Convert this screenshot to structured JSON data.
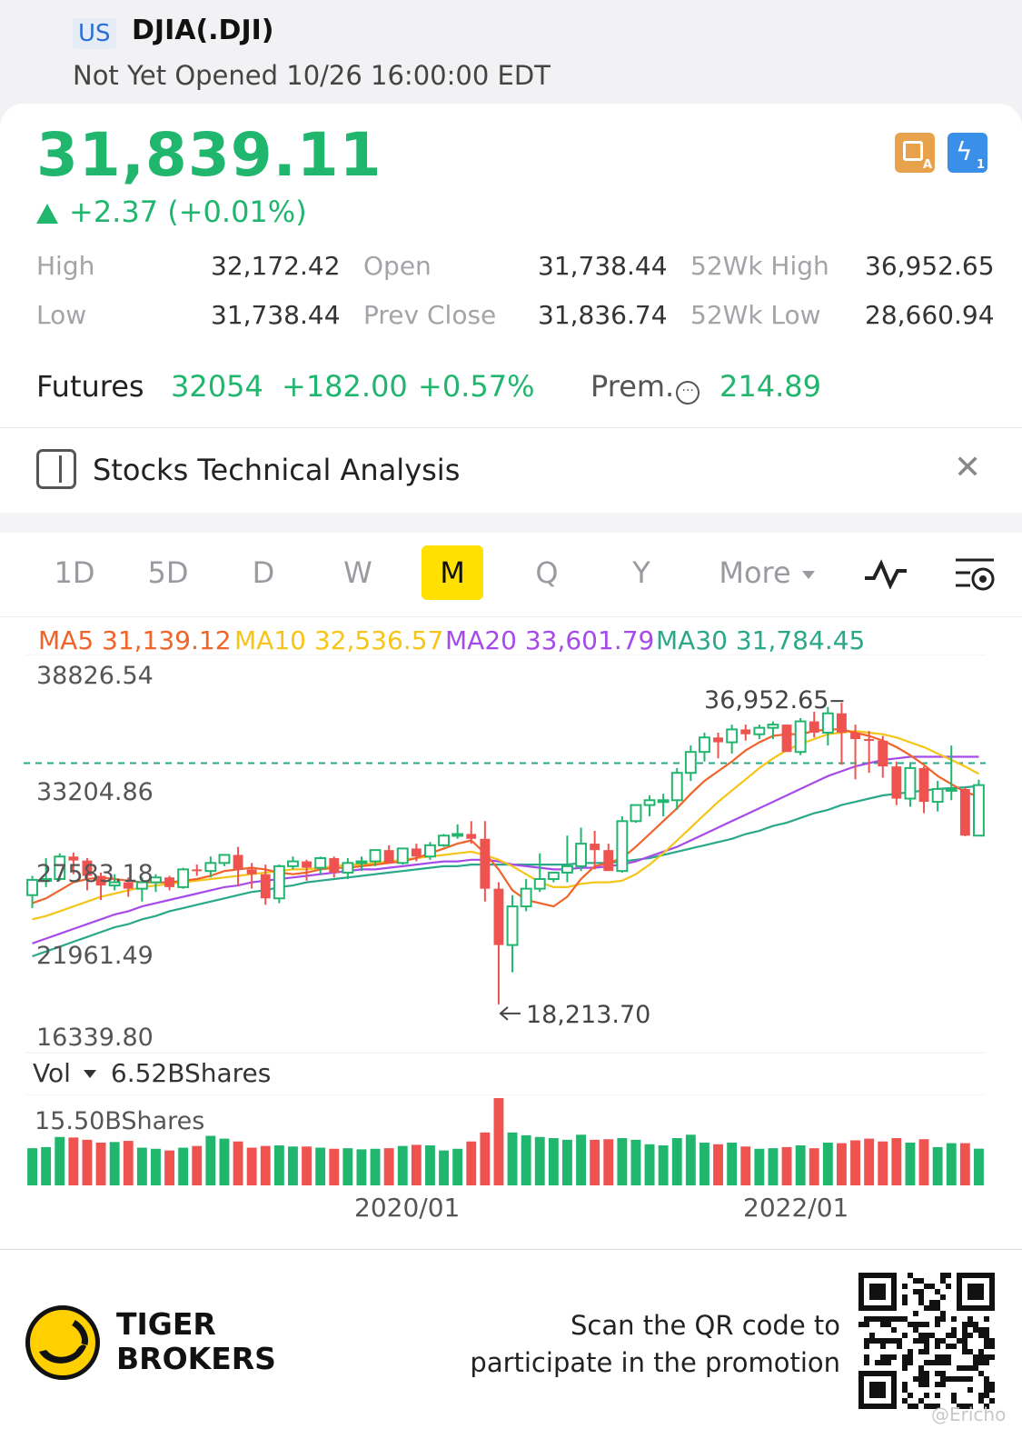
{
  "header": {
    "market_badge": "US",
    "ticker": "DJIA(.DJI)",
    "status": "Not Yet Opened 10/26 16:00:00 EDT"
  },
  "quote": {
    "price": "31,839.11",
    "change": "+2.37 (+0.01%)",
    "up_color": "#21b66e",
    "down_color": "#ef5350"
  },
  "badges": {
    "left_icon": "layers-icon",
    "left_tag": "A",
    "right_icon": "lightning-icon",
    "right_tag": "1"
  },
  "stats": [
    {
      "label": "High",
      "value": "32,172.42"
    },
    {
      "label": "Open",
      "value": "31,738.44"
    },
    {
      "label": "52Wk High",
      "value": "36,952.65"
    },
    {
      "label": "Low",
      "value": "31,738.44"
    },
    {
      "label": "Prev Close",
      "value": "31,836.74"
    },
    {
      "label": "52Wk Low",
      "value": "28,660.94"
    }
  ],
  "futures": {
    "label": "Futures",
    "price": "32054",
    "change": "+182.00",
    "pct": "+0.57%",
    "prem_label": "Prem.",
    "prem_value": "214.89"
  },
  "banner": {
    "title": "Stocks Technical Analysis"
  },
  "tabs": {
    "items": [
      "1D",
      "5D",
      "D",
      "W",
      "M",
      "Q",
      "Y"
    ],
    "active": "M",
    "more": "More"
  },
  "ma": {
    "ma5": {
      "label": "MA5 31,139.12",
      "color": "#f0642a"
    },
    "ma10": {
      "label": "MA10 32,536.57",
      "color": "#f5c518"
    },
    "ma20": {
      "label": "MA20 33,601.79",
      "color": "#a64bea"
    },
    "ma30": {
      "label": "MA30 31,784.45",
      "color": "#2aa889"
    }
  },
  "price_axis": {
    "labels": [
      "38826.54",
      "33204.86",
      "27583.18",
      "21961.49",
      "16339.80"
    ]
  },
  "annotations": {
    "high": "36,952.65",
    "low": "18,213.70"
  },
  "volume": {
    "label": "Vol",
    "value": "6.52BShares",
    "max_label": "15.50BShares"
  },
  "x_axis": {
    "labels": [
      "2020/01",
      "2022/01"
    ]
  },
  "footer": {
    "brand_line1": "TIGER",
    "brand_line2": "BROKERS",
    "promo_line1": "Scan the QR code to",
    "promo_line2": "participate in the promotion",
    "watermark": "@Ericho"
  },
  "chart_data": {
    "type": "candlestick",
    "interval": "M",
    "ylim": [
      16339.8,
      38826.54
    ],
    "dashed_reference": 33204.86,
    "candles": [
      {
        "o": 25000,
        "h": 26200,
        "l": 24200,
        "c": 25950
      },
      {
        "o": 25950,
        "h": 27300,
        "l": 25500,
        "c": 26000
      },
      {
        "o": 26000,
        "h": 27600,
        "l": 25900,
        "c": 27400
      },
      {
        "o": 27400,
        "h": 27650,
        "l": 26300,
        "c": 27150
      },
      {
        "o": 27150,
        "h": 27300,
        "l": 25300,
        "c": 26200
      },
      {
        "o": 26200,
        "h": 26400,
        "l": 24700,
        "c": 25600
      },
      {
        "o": 25600,
        "h": 26300,
        "l": 25300,
        "c": 25800
      },
      {
        "o": 25800,
        "h": 26100,
        "l": 24900,
        "c": 25400
      },
      {
        "o": 25400,
        "h": 26100,
        "l": 24600,
        "c": 25800
      },
      {
        "o": 25800,
        "h": 26300,
        "l": 25200,
        "c": 26100
      },
      {
        "o": 26100,
        "h": 26200,
        "l": 25300,
        "c": 25500
      },
      {
        "o": 25500,
        "h": 26700,
        "l": 25400,
        "c": 26600
      },
      {
        "o": 26600,
        "h": 26900,
        "l": 26200,
        "c": 26500
      },
      {
        "o": 26500,
        "h": 27400,
        "l": 26100,
        "c": 27000
      },
      {
        "o": 27000,
        "h": 27500,
        "l": 26800,
        "c": 27500
      },
      {
        "o": 27500,
        "h": 28000,
        "l": 25600,
        "c": 26600
      },
      {
        "o": 26600,
        "h": 27000,
        "l": 25400,
        "c": 26300
      },
      {
        "o": 26300,
        "h": 26900,
        "l": 24400,
        "c": 24800
      },
      {
        "o": 24800,
        "h": 26900,
        "l": 24500,
        "c": 26800
      },
      {
        "o": 26800,
        "h": 27400,
        "l": 26600,
        "c": 27100
      },
      {
        "o": 27100,
        "h": 27200,
        "l": 25900,
        "c": 26700
      },
      {
        "o": 26700,
        "h": 27400,
        "l": 26300,
        "c": 27300
      },
      {
        "o": 27300,
        "h": 27400,
        "l": 26100,
        "c": 26400
      },
      {
        "o": 26400,
        "h": 27300,
        "l": 26000,
        "c": 27000
      },
      {
        "o": 27000,
        "h": 27400,
        "l": 26500,
        "c": 27100
      },
      {
        "o": 27100,
        "h": 27700,
        "l": 26800,
        "c": 27800
      },
      {
        "o": 27800,
        "h": 28100,
        "l": 27000,
        "c": 27000
      },
      {
        "o": 27000,
        "h": 27900,
        "l": 26900,
        "c": 27900
      },
      {
        "o": 27900,
        "h": 28200,
        "l": 27100,
        "c": 27400
      },
      {
        "o": 27400,
        "h": 28300,
        "l": 27200,
        "c": 28100
      },
      {
        "o": 28100,
        "h": 28800,
        "l": 28000,
        "c": 28700
      },
      {
        "o": 28700,
        "h": 29400,
        "l": 28500,
        "c": 28800
      },
      {
        "o": 28800,
        "h": 29600,
        "l": 28200,
        "c": 28500
      },
      {
        "o": 28500,
        "h": 29600,
        "l": 24600,
        "c": 25400
      },
      {
        "o": 25400,
        "h": 25800,
        "l": 18213.7,
        "c": 21900
      },
      {
        "o": 21900,
        "h": 25000,
        "l": 20200,
        "c": 24300
      },
      {
        "o": 24300,
        "h": 26000,
        "l": 24000,
        "c": 25400
      },
      {
        "o": 25400,
        "h": 27600,
        "l": 25200,
        "c": 26000
      },
      {
        "o": 26000,
        "h": 26400,
        "l": 25800,
        "c": 26400
      },
      {
        "o": 26400,
        "h": 28700,
        "l": 25800,
        "c": 26800
      },
      {
        "o": 26800,
        "h": 29200,
        "l": 26500,
        "c": 28200
      },
      {
        "o": 28200,
        "h": 29000,
        "l": 26600,
        "c": 27800
      },
      {
        "o": 27800,
        "h": 28200,
        "l": 26700,
        "c": 26500
      },
      {
        "o": 26500,
        "h": 29900,
        "l": 26400,
        "c": 29600
      },
      {
        "o": 29600,
        "h": 30600,
        "l": 29500,
        "c": 30600
      },
      {
        "o": 30600,
        "h": 31200,
        "l": 29900,
        "c": 30900
      },
      {
        "o": 30900,
        "h": 31300,
        "l": 29900,
        "c": 30900
      },
      {
        "o": 30900,
        "h": 32900,
        "l": 30300,
        "c": 32600
      },
      {
        "o": 32600,
        "h": 34300,
        "l": 32100,
        "c": 33900
      },
      {
        "o": 33900,
        "h": 35100,
        "l": 33300,
        "c": 34800
      },
      {
        "o": 34800,
        "h": 35100,
        "l": 33500,
        "c": 34500
      },
      {
        "o": 34500,
        "h": 35600,
        "l": 33800,
        "c": 35300
      },
      {
        "o": 35300,
        "h": 35600,
        "l": 34600,
        "c": 35000
      },
      {
        "o": 35000,
        "h": 35600,
        "l": 34700,
        "c": 35400
      },
      {
        "o": 35400,
        "h": 35800,
        "l": 34700,
        "c": 35600
      },
      {
        "o": 35600,
        "h": 35600,
        "l": 33900,
        "c": 33900
      },
      {
        "o": 33900,
        "h": 36000,
        "l": 33700,
        "c": 35800
      },
      {
        "o": 35800,
        "h": 36400,
        "l": 34800,
        "c": 35100
      },
      {
        "o": 35100,
        "h": 36700,
        "l": 34300,
        "c": 36300
      },
      {
        "o": 36300,
        "h": 36952.65,
        "l": 33100,
        "c": 35100
      },
      {
        "o": 35100,
        "h": 35600,
        "l": 32200,
        "c": 34700
      },
      {
        "o": 34700,
        "h": 35200,
        "l": 32600,
        "c": 34600
      },
      {
        "o": 34600,
        "h": 34900,
        "l": 32300,
        "c": 33000
      },
      {
        "o": 33000,
        "h": 33300,
        "l": 30600,
        "c": 31000
      },
      {
        "o": 31000,
        "h": 33200,
        "l": 30500,
        "c": 32900
      },
      {
        "o": 32900,
        "h": 33000,
        "l": 30100,
        "c": 30800
      },
      {
        "o": 30800,
        "h": 32100,
        "l": 30200,
        "c": 31600
      },
      {
        "o": 31600,
        "h": 34300,
        "l": 30900,
        "c": 31600
      },
      {
        "o": 31600,
        "h": 31700,
        "l": 28660.94,
        "c": 28700
      },
      {
        "o": 28700,
        "h": 32172.42,
        "l": 28660.94,
        "c": 31839.11
      }
    ],
    "ma_lines": {
      "MA5": [
        24500,
        24800,
        25300,
        25800,
        26000,
        26100,
        26000,
        25900,
        25800,
        25800,
        25800,
        25900,
        26000,
        26200,
        26500,
        26600,
        26700,
        26600,
        26400,
        26300,
        26400,
        26600,
        26700,
        26700,
        26800,
        26900,
        27000,
        27100,
        27300,
        27600,
        27900,
        28200,
        28400,
        27600,
        26600,
        25300,
        24700,
        24500,
        24300,
        24900,
        26000,
        26800,
        27000,
        27300,
        28000,
        28800,
        29600,
        30400,
        31300,
        32100,
        32700,
        33300,
        34000,
        34500,
        34900,
        35000,
        35000,
        35200,
        35300,
        35300,
        35100,
        34900,
        34600,
        34200,
        33700,
        33100,
        32400,
        31900,
        31400,
        31139.12
      ],
      "MA10": [
        23500,
        23700,
        24000,
        24300,
        24600,
        24900,
        25100,
        25300,
        25500,
        25600,
        25700,
        25800,
        25900,
        26000,
        26100,
        26200,
        26300,
        26400,
        26500,
        26600,
        26600,
        26700,
        26800,
        26900,
        26900,
        27000,
        27100,
        27200,
        27300,
        27400,
        27500,
        27600,
        27700,
        27500,
        27200,
        26800,
        26300,
        25800,
        25500,
        25500,
        25700,
        25800,
        25800,
        25900,
        26300,
        26900,
        27600,
        28400,
        29200,
        30000,
        30800,
        31500,
        32200,
        32900,
        33500,
        34000,
        34400,
        34700,
        35000,
        35100,
        35200,
        35100,
        35000,
        34800,
        34500,
        34200,
        33800,
        33400,
        33000,
        32536.57
      ],
      "MA20": [
        22000,
        22300,
        22600,
        22900,
        23200,
        23500,
        23800,
        24000,
        24300,
        24500,
        24700,
        24900,
        25100,
        25300,
        25500,
        25600,
        25800,
        25900,
        26000,
        26100,
        26200,
        26300,
        26400,
        26500,
        26600,
        26600,
        26700,
        26800,
        26900,
        27000,
        27100,
        27100,
        27200,
        27200,
        27100,
        26900,
        26800,
        26700,
        26600,
        26600,
        26700,
        26700,
        26800,
        26900,
        27100,
        27400,
        27700,
        28000,
        28400,
        28800,
        29200,
        29600,
        30000,
        30400,
        30800,
        31200,
        31600,
        32000,
        32400,
        32700,
        33000,
        33200,
        33400,
        33500,
        33600,
        33600,
        33600,
        33600,
        33600,
        33601.79
      ],
      "MA30": [
        21200,
        21500,
        21800,
        22100,
        22400,
        22700,
        23000,
        23200,
        23500,
        23700,
        24000,
        24200,
        24400,
        24600,
        24800,
        25000,
        25200,
        25300,
        25500,
        25600,
        25800,
        25900,
        26000,
        26100,
        26200,
        26300,
        26400,
        26500,
        26600,
        26700,
        26800,
        26800,
        26900,
        26900,
        26900,
        26900,
        26900,
        26900,
        26900,
        26900,
        27000,
        27000,
        27000,
        27100,
        27200,
        27300,
        27500,
        27700,
        27900,
        28100,
        28300,
        28500,
        28800,
        29000,
        29300,
        29500,
        29800,
        30100,
        30300,
        30600,
        30800,
        31000,
        31200,
        31300,
        31400,
        31500,
        31600,
        31650,
        31700,
        31784.45
      ]
    },
    "volume_bshares": [
      6.6,
      6.8,
      8.6,
      8.5,
      8.1,
      7.6,
      7.7,
      7.9,
      6.7,
      6.5,
      6.2,
      6.7,
      7.0,
      8.8,
      8.3,
      7.8,
      6.7,
      7.0,
      7.1,
      6.9,
      6.9,
      6.7,
      6.5,
      6.6,
      6.4,
      6.5,
      6.6,
      7.0,
      7.2,
      7.1,
      6.2,
      6.5,
      7.8,
      9.4,
      15.5,
      9.4,
      8.9,
      8.6,
      8.4,
      8.1,
      9.0,
      8.1,
      8.2,
      8.4,
      8.1,
      7.3,
      7.1,
      8.4,
      9.0,
      7.6,
      7.3,
      7.6,
      6.9,
      6.5,
      6.6,
      6.8,
      7.1,
      6.6,
      7.6,
      7.5,
      8.0,
      8.3,
      7.8,
      8.4,
      7.6,
      8.2,
      6.8,
      7.5,
      7.5,
      6.52
    ],
    "x_labels": [
      "2020/01",
      "2022/01"
    ]
  }
}
